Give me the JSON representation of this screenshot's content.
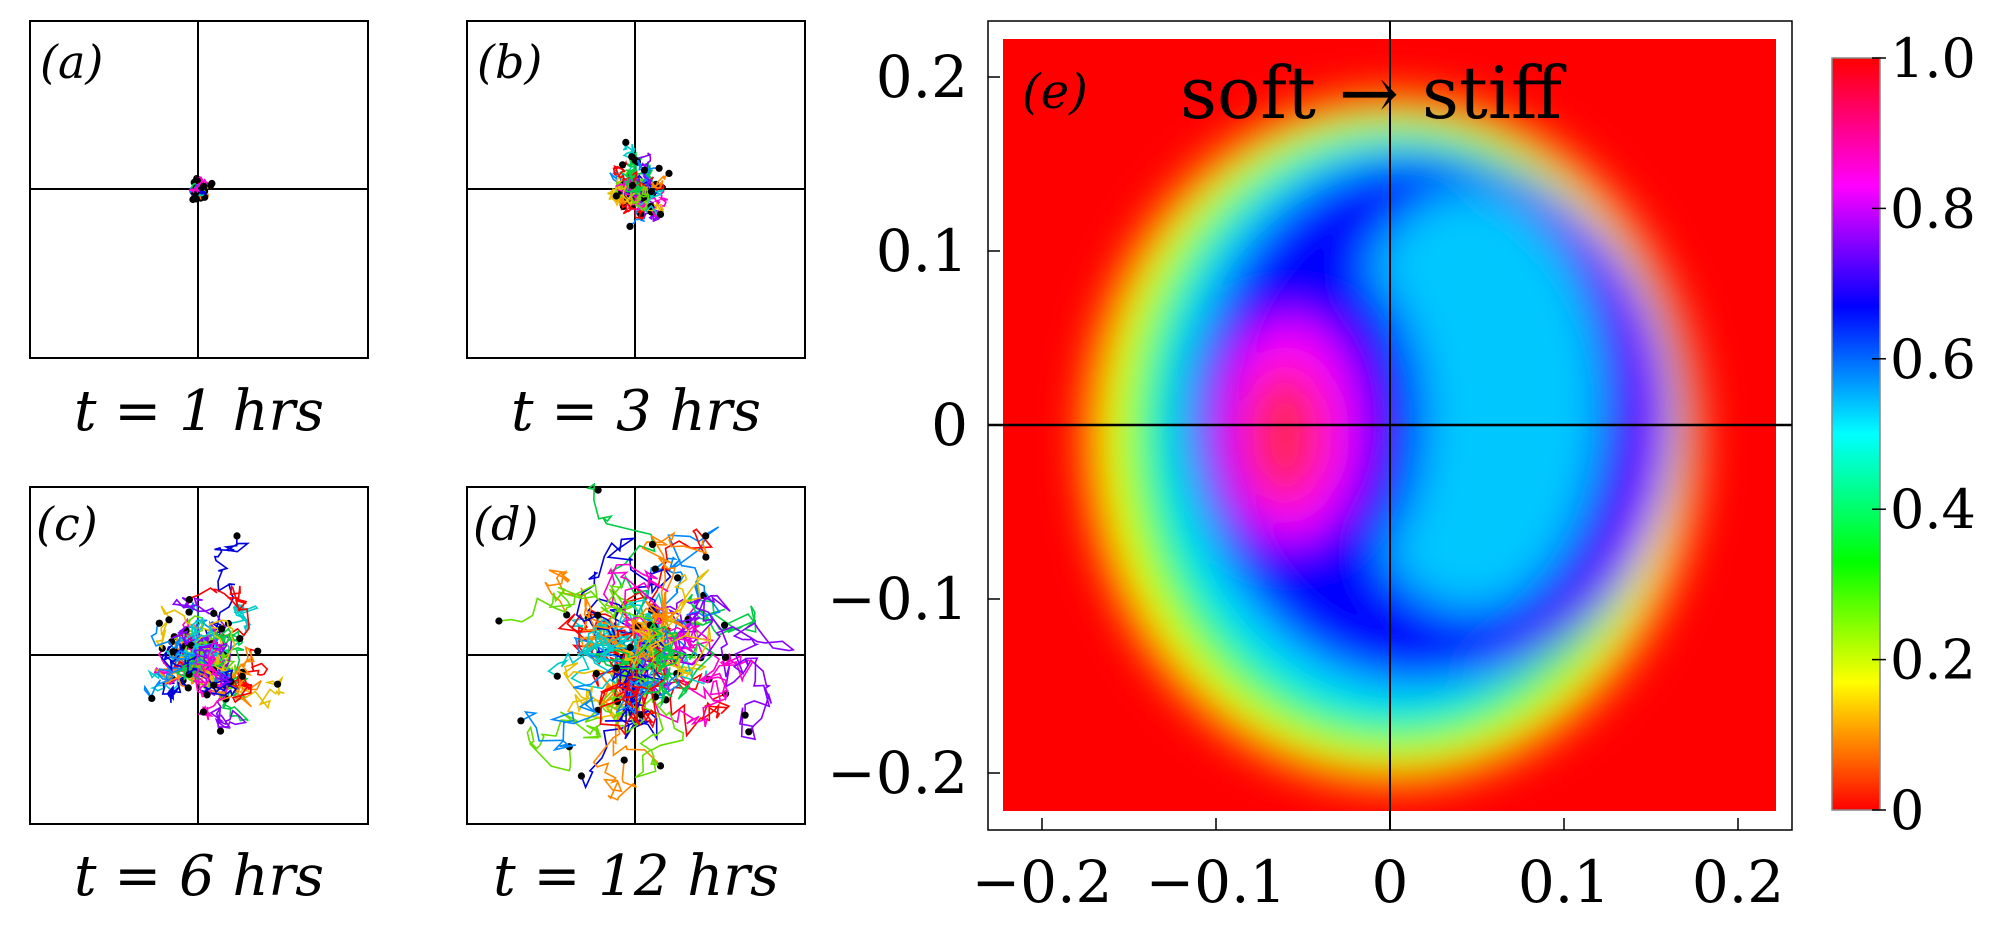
{
  "chart_data": [
    {
      "id": "a",
      "type": "scatter",
      "panel_label": "(a)",
      "caption": "t = 1 hrs",
      "xlim": [
        -1,
        1
      ],
      "ylim": [
        -1,
        1
      ],
      "axes": "cross",
      "spread": 0.06,
      "trajectories": 30
    },
    {
      "id": "b",
      "type": "scatter",
      "panel_label": "(b)",
      "caption": "t = 3 hrs",
      "xlim": [
        -1,
        1
      ],
      "ylim": [
        -1,
        1
      ],
      "axes": "cross",
      "spread": 0.2,
      "trajectories": 35
    },
    {
      "id": "c",
      "type": "scatter",
      "panel_label": "(c)",
      "caption": "t = 6 hrs",
      "xlim": [
        -1,
        1
      ],
      "ylim": [
        -1,
        1
      ],
      "axes": "cross",
      "spread": 0.4,
      "trajectories": 40
    },
    {
      "id": "d",
      "type": "scatter",
      "panel_label": "(d)",
      "caption": "t = 12 hrs",
      "xlim": [
        -1,
        1
      ],
      "ylim": [
        -1,
        1
      ],
      "axes": "cross",
      "spread": 0.7,
      "trajectories": 45
    },
    {
      "id": "e",
      "type": "heatmap",
      "panel_label": "(e)",
      "title": "soft → stiff",
      "xlim": [
        -0.23,
        0.23
      ],
      "ylim": [
        -0.23,
        0.23
      ],
      "xticks": [
        -0.2,
        -0.1,
        0,
        0.1,
        0.2
      ],
      "yticks": [
        -0.2,
        -0.1,
        0,
        0.1,
        0.2
      ],
      "xtick_labels": [
        "−0.2",
        "−0.1",
        "0",
        "0.1",
        "0.2"
      ],
      "ytick_labels": [
        "−0.2",
        "−0.1",
        "0",
        "0.1",
        "0.2"
      ],
      "colorbar": {
        "range": [
          0,
          1
        ],
        "ticks": [
          0,
          0.2,
          0.4,
          0.6,
          0.8,
          1.0
        ],
        "tick_labels": [
          "0",
          "0.2",
          "0.4",
          "0.6",
          "0.8",
          "1.0"
        ],
        "colors": [
          "#ff0000",
          "#ffff00",
          "#00ff00",
          "#00ffff",
          "#0000ff",
          "#ff00ff",
          "#ff0000"
        ]
      }
    }
  ]
}
